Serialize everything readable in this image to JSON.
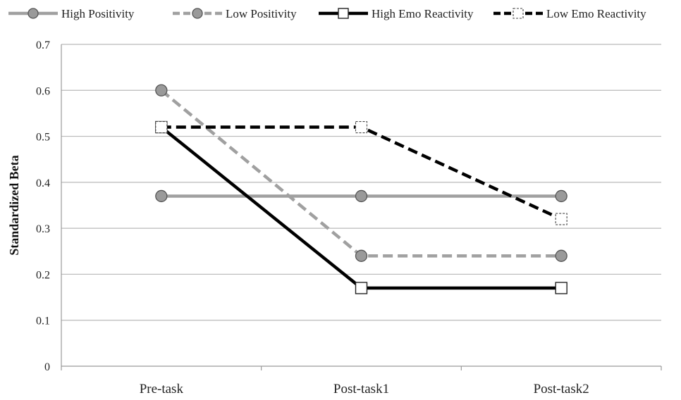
{
  "chart_data": {
    "type": "line",
    "categories": [
      "Pre-task",
      "Post-task1",
      "Post-task2"
    ],
    "ylabel": "Standardized Beta",
    "xlabel": "",
    "ylim": [
      0,
      0.7
    ],
    "yticks": [
      "0",
      "0.1",
      "0.2",
      "0.3",
      "0.4",
      "0.5",
      "0.6",
      "0.7"
    ],
    "grid": true,
    "legend_position": "top",
    "series": [
      {
        "name": "High Positivity",
        "values": [
          0.37,
          0.37,
          0.37
        ],
        "color": "#a0a0a0",
        "dash": "solid",
        "marker": "circle",
        "marker_fill": "#9a9a9a"
      },
      {
        "name": "Low Positivity",
        "values": [
          0.6,
          0.24,
          0.24
        ],
        "color": "#a0a0a0",
        "dash": "dashed",
        "marker": "circle",
        "marker_fill": "#9a9a9a"
      },
      {
        "name": "High Emo Reactivity",
        "values": [
          0.52,
          0.17,
          0.17
        ],
        "color": "#000000",
        "dash": "solid",
        "marker": "square",
        "marker_fill": "#ffffff"
      },
      {
        "name": "Low Emo Reactivity",
        "values": [
          0.52,
          0.52,
          0.32
        ],
        "color": "#000000",
        "dash": "dashed",
        "marker": "square-dashed",
        "marker_fill": "#ffffff"
      }
    ]
  }
}
